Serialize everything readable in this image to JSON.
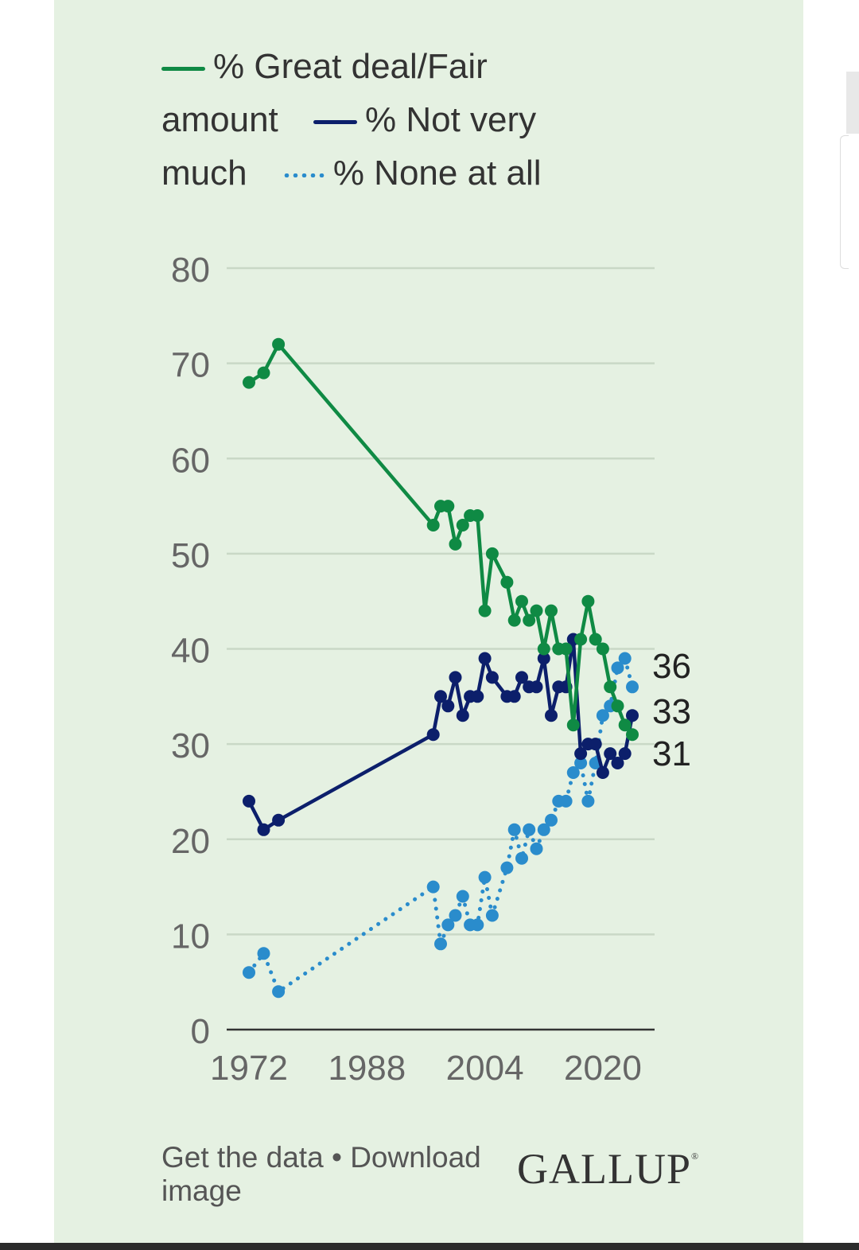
{
  "legend": [
    {
      "label": "% Great deal/Fair amount",
      "color": "#0f8a44",
      "style": "solid"
    },
    {
      "label": "% Not very much",
      "color": "#0c1f6b",
      "style": "solid"
    },
    {
      "label": "% None at all",
      "color": "#2a8ccc",
      "style": "dotted"
    }
  ],
  "footer": {
    "get_data": "Get the data",
    "separator": "•",
    "download": "Download image",
    "logo": "GALLUP"
  },
  "chart_data": {
    "type": "line",
    "title": "",
    "xlabel": "",
    "ylabel": "",
    "xlim": [
      1972,
      2024
    ],
    "ylim": [
      0,
      80
    ],
    "x_ticks": [
      1972,
      1988,
      2004,
      2020
    ],
    "y_ticks": [
      0,
      10,
      20,
      30,
      40,
      50,
      60,
      70,
      80
    ],
    "grid": true,
    "legend_position": "top",
    "end_labels": [
      "36",
      "33",
      "31"
    ],
    "series": [
      {
        "name": "% Great deal/Fair amount",
        "color": "#0f8a44",
        "style": "solid",
        "points": [
          [
            1972,
            68
          ],
          [
            1974,
            69
          ],
          [
            1976,
            72
          ],
          [
            1997,
            53
          ],
          [
            1998,
            55
          ],
          [
            1999,
            55
          ],
          [
            2000,
            51
          ],
          [
            2001,
            53
          ],
          [
            2002,
            54
          ],
          [
            2003,
            54
          ],
          [
            2004,
            44
          ],
          [
            2005,
            50
          ],
          [
            2007,
            47
          ],
          [
            2008,
            43
          ],
          [
            2009,
            45
          ],
          [
            2010,
            43
          ],
          [
            2011,
            44
          ],
          [
            2012,
            40
          ],
          [
            2013,
            44
          ],
          [
            2014,
            40
          ],
          [
            2015,
            40
          ],
          [
            2016,
            32
          ],
          [
            2017,
            41
          ],
          [
            2018,
            45
          ],
          [
            2019,
            41
          ],
          [
            2020,
            40
          ],
          [
            2021,
            36
          ],
          [
            2022,
            34
          ],
          [
            2023,
            32
          ],
          [
            2024,
            31
          ]
        ]
      },
      {
        "name": "% Not very much",
        "color": "#0c1f6b",
        "style": "solid",
        "points": [
          [
            1972,
            24
          ],
          [
            1974,
            21
          ],
          [
            1976,
            22
          ],
          [
            1997,
            31
          ],
          [
            1998,
            35
          ],
          [
            1999,
            34
          ],
          [
            2000,
            37
          ],
          [
            2001,
            33
          ],
          [
            2002,
            35
          ],
          [
            2003,
            35
          ],
          [
            2004,
            39
          ],
          [
            2005,
            37
          ],
          [
            2007,
            35
          ],
          [
            2008,
            35
          ],
          [
            2009,
            37
          ],
          [
            2010,
            36
          ],
          [
            2011,
            36
          ],
          [
            2012,
            39
          ],
          [
            2013,
            33
          ],
          [
            2014,
            36
          ],
          [
            2015,
            36
          ],
          [
            2016,
            41
          ],
          [
            2017,
            29
          ],
          [
            2018,
            30
          ],
          [
            2019,
            30
          ],
          [
            2020,
            27
          ],
          [
            2021,
            29
          ],
          [
            2022,
            28
          ],
          [
            2023,
            29
          ],
          [
            2024,
            33
          ]
        ]
      },
      {
        "name": "% None at all",
        "color": "#2a8ccc",
        "style": "dotted",
        "points": [
          [
            1972,
            6
          ],
          [
            1974,
            8
          ],
          [
            1976,
            4
          ],
          [
            1997,
            15
          ],
          [
            1998,
            9
          ],
          [
            1999,
            11
          ],
          [
            2000,
            12
          ],
          [
            2001,
            14
          ],
          [
            2002,
            11
          ],
          [
            2003,
            11
          ],
          [
            2004,
            16
          ],
          [
            2005,
            12
          ],
          [
            2007,
            17
          ],
          [
            2008,
            21
          ],
          [
            2009,
            18
          ],
          [
            2010,
            21
          ],
          [
            2011,
            19
          ],
          [
            2012,
            21
          ],
          [
            2013,
            22
          ],
          [
            2014,
            24
          ],
          [
            2015,
            24
          ],
          [
            2016,
            27
          ],
          [
            2017,
            28
          ],
          [
            2018,
            24
          ],
          [
            2019,
            28
          ],
          [
            2020,
            33
          ],
          [
            2021,
            34
          ],
          [
            2022,
            38
          ],
          [
            2023,
            39
          ],
          [
            2024,
            36
          ]
        ]
      }
    ]
  }
}
